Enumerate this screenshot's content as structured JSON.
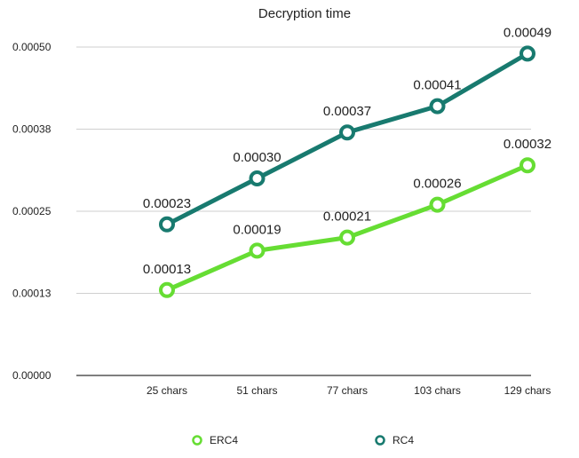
{
  "chart_data": {
    "type": "line",
    "title": "Decryption time",
    "categories": [
      "25 chars",
      "51 chars",
      "77 chars",
      "103 chars",
      "129 chars"
    ],
    "series": [
      {
        "name": "RC4",
        "values": [
          0.00023,
          0.0003,
          0.00037,
          0.00041,
          0.00049
        ],
        "labels": [
          "0.00023",
          "0.00030",
          "0.00037",
          "0.00041",
          "0.00049"
        ],
        "color": "#187a6f"
      },
      {
        "name": "ERC4",
        "values": [
          0.00013,
          0.00019,
          0.00021,
          0.00026,
          0.00032
        ],
        "labels": [
          "0.00013",
          "0.00019",
          "0.00021",
          "0.00026",
          "0.00032"
        ],
        "color": "#66dd33"
      }
    ],
    "yticks": [
      0.0,
      0.000125,
      0.00025,
      0.000375,
      0.0005
    ],
    "ytick_labels": [
      "0.00000",
      "0.00013",
      "0.00025",
      "0.00038",
      "0.00050"
    ],
    "ylim": [
      0,
      0.0005
    ],
    "grid": true,
    "legend": {
      "position": "bottom",
      "entries": [
        "ERC4",
        "RC4"
      ]
    }
  }
}
